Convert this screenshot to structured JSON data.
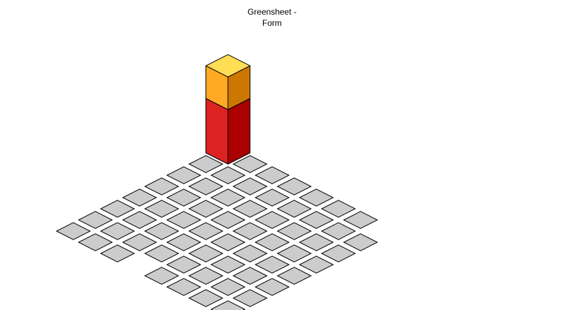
{
  "chart_data": {
    "type": "isometric-3d-bar",
    "grid": {
      "rows": 8,
      "cols": 8,
      "tiles_present": [
        [
          1,
          1,
          1,
          1,
          1,
          1,
          1,
          0
        ],
        [
          1,
          1,
          1,
          1,
          1,
          1,
          1,
          1
        ],
        [
          1,
          1,
          1,
          1,
          1,
          1,
          1,
          1
        ],
        [
          1,
          1,
          1,
          1,
          1,
          1,
          1,
          1
        ],
        [
          1,
          1,
          1,
          1,
          1,
          1,
          1,
          1
        ],
        [
          1,
          1,
          1,
          1,
          1,
          1,
          1,
          1
        ],
        [
          1,
          1,
          1,
          1,
          1,
          1,
          1,
          1
        ],
        [
          1,
          1,
          1,
          0,
          1,
          1,
          1,
          1
        ]
      ]
    },
    "bars": [
      {
        "label": "Greensheet - Form",
        "label_lines": [
          "Greensheet -",
          "Form"
        ],
        "row": 0,
        "col": 0,
        "segments": [
          {
            "name": "lower",
            "value": 5
          },
          {
            "name": "upper",
            "value": 3
          }
        ]
      }
    ],
    "colors": {
      "tile_fill": "#cccccc",
      "tile_stroke": "#000000",
      "lower_front": "#dd2222",
      "lower_side": "#aa0000",
      "upper_front": "#ffaa22",
      "upper_side": "#cc7700",
      "top_face": "#ffdd55"
    }
  }
}
